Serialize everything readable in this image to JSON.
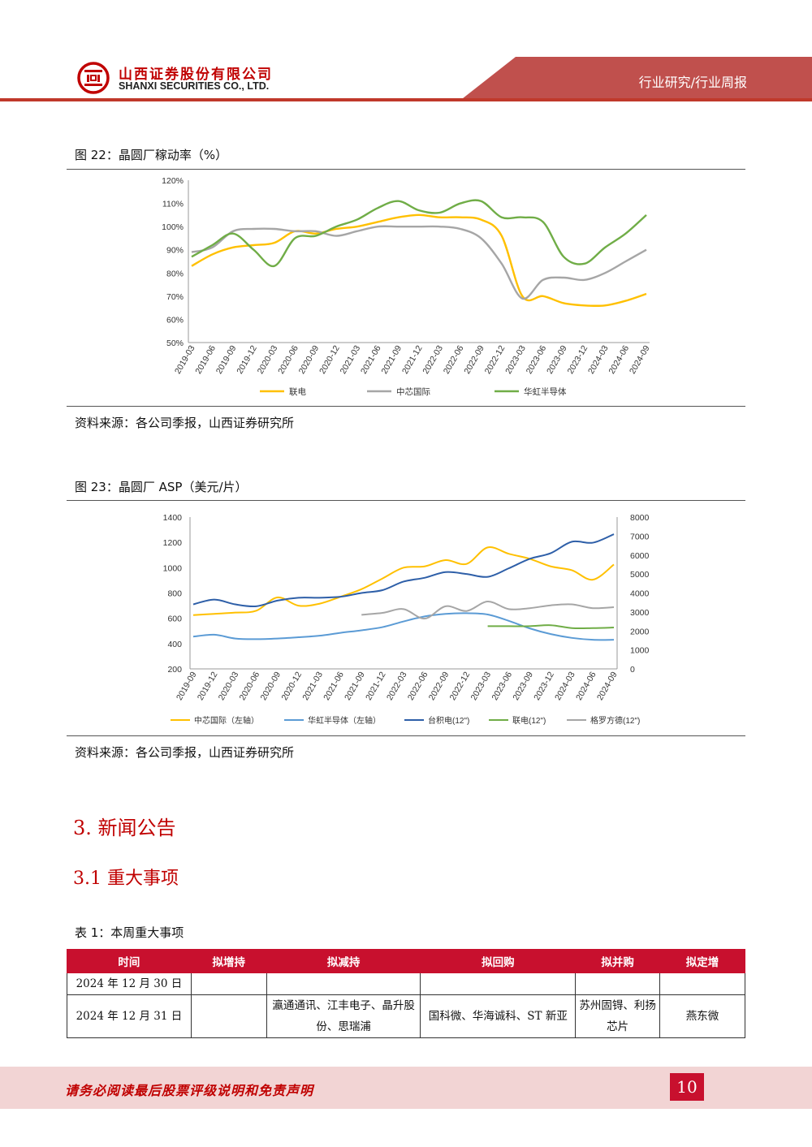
{
  "header": {
    "company_cn": "山西证券股份有限公司",
    "company_en": "SHANXI SECURITIES CO., LTD.",
    "section": "行业研究/行业周报",
    "colors": {
      "brand_red": "#c00000",
      "header_red": "#c0504d",
      "footer_bg": "#f2d4d4"
    }
  },
  "fig22": {
    "title": "图 22：晶圆厂稼动率（%）",
    "source": "资料来源：各公司季报，山西证券研究所"
  },
  "fig23": {
    "title": "图 23：晶圆厂 ASP（美元/片）",
    "source": "资料来源：各公司季报，山西证券研究所"
  },
  "section3": {
    "heading": "3.  新闻公告"
  },
  "section31": {
    "heading": "3.1  重大事项"
  },
  "table1": {
    "title": "表 1：本周重大事项",
    "headers": [
      "时间",
      "拟增持",
      "拟减持",
      "拟回购",
      "拟并购",
      "拟定增"
    ],
    "rows": [
      [
        "2024 年 12 月 30 日",
        "",
        "",
        "",
        "",
        ""
      ],
      [
        "2024 年 12 月 31 日",
        "",
        "瀛通通讯、江丰电子、晶升股份、思瑞浦",
        "国科微、华海诚科、ST 新亚",
        "苏州固锝、利扬芯片",
        "燕东微"
      ]
    ]
  },
  "footer": {
    "disclaimer": "请务必阅读最后股票评级说明和免责声明",
    "page": "10"
  },
  "chart_data": [
    {
      "type": "line",
      "categories": [
        "2019-03",
        "2019-06",
        "2019-09",
        "2019-12",
        "2020-03",
        "2020-06",
        "2020-09",
        "2020-12",
        "2021-03",
        "2021-06",
        "2021-09",
        "2021-12",
        "2022-03",
        "2022-06",
        "2022-09",
        "2022-12",
        "2023-03",
        "2023-06",
        "2023-09",
        "2023-12",
        "2024-03",
        "2024-06",
        "2024-09"
      ],
      "ylim": [
        50,
        120
      ],
      "yticks": [
        "50%",
        "60%",
        "70%",
        "80%",
        "90%",
        "100%",
        "110%",
        "120%"
      ],
      "legend_position": "bottom",
      "series": [
        {
          "name": "联电",
          "color": "#ffc000",
          "values": [
            83,
            88,
            91,
            92,
            93,
            98,
            97,
            99,
            100,
            102,
            104,
            105,
            104,
            104,
            103,
            96,
            70,
            70,
            67,
            66,
            66,
            68,
            71
          ]
        },
        {
          "name": "中芯国际",
          "color": "#a6a6a6",
          "values": [
            89,
            91,
            98,
            99,
            99,
            98,
            98,
            96,
            98,
            100,
            100,
            100,
            100,
            99,
            95,
            84,
            69,
            77,
            78,
            77,
            80,
            85,
            90
          ]
        },
        {
          "name": "华虹半导体",
          "color": "#70ad47",
          "values": [
            87,
            92,
            97,
            90,
            83,
            95,
            96,
            100,
            103,
            108,
            111,
            107,
            106,
            110,
            111,
            104,
            104,
            102,
            87,
            84,
            91,
            97,
            105
          ]
        }
      ]
    },
    {
      "type": "line",
      "categories": [
        "2019-09",
        "2019-12",
        "2020-03",
        "2020-06",
        "2020-09",
        "2020-12",
        "2021-03",
        "2021-06",
        "2021-09",
        "2021-12",
        "2022-03",
        "2022-06",
        "2022-09",
        "2022-12",
        "2023-03",
        "2023-06",
        "2023-09",
        "2023-12",
        "2024-03",
        "2024-06",
        "2024-09"
      ],
      "y_left": {
        "lim": [
          200,
          1400
        ],
        "ticks": [
          "200",
          "400",
          "600",
          "800",
          "1000",
          "1200",
          "1400"
        ]
      },
      "y_right": {
        "lim": [
          0,
          8000
        ],
        "ticks": [
          "0",
          "1000",
          "2000",
          "3000",
          "4000",
          "5000",
          "6000",
          "7000",
          "8000"
        ]
      },
      "legend_position": "bottom",
      "series": [
        {
          "name": "中芯国际（左轴）",
          "axis": "left",
          "color": "#ffc000",
          "values": [
            625,
            635,
            645,
            660,
            765,
            700,
            715,
            770,
            830,
            915,
            1000,
            1010,
            1060,
            1030,
            1160,
            1110,
            1070,
            1010,
            980,
            905,
            1025
          ]
        },
        {
          "name": "华虹半导体（左轴）",
          "axis": "left",
          "color": "#5b9bd5",
          "values": [
            455,
            470,
            440,
            435,
            440,
            450,
            462,
            485,
            505,
            530,
            575,
            615,
            635,
            640,
            630,
            580,
            520,
            475,
            445,
            430,
            430
          ]
        },
        {
          "name": "台积电(12\")",
          "axis": "right",
          "color": "#2e5fa8",
          "values": [
            3400,
            3650,
            3400,
            3300,
            3600,
            3750,
            3750,
            3800,
            4000,
            4150,
            4600,
            4800,
            5100,
            5000,
            4850,
            5300,
            5800,
            6100,
            6700,
            6650,
            7100
          ]
        },
        {
          "name": "联电(12\")",
          "axis": "right",
          "color": "#70ad47",
          "values": [
            null,
            null,
            null,
            null,
            null,
            null,
            null,
            null,
            null,
            null,
            null,
            null,
            null,
            null,
            2250,
            2250,
            2250,
            2300,
            2150,
            2150,
            2180
          ]
        },
        {
          "name": "格罗方德(12\")",
          "axis": "right",
          "color": "#a6a6a6",
          "values": [
            null,
            null,
            null,
            null,
            null,
            null,
            null,
            null,
            2850,
            2950,
            3150,
            2650,
            3300,
            3050,
            3550,
            3150,
            3200,
            3350,
            3400,
            3200,
            3250
          ]
        }
      ]
    }
  ]
}
